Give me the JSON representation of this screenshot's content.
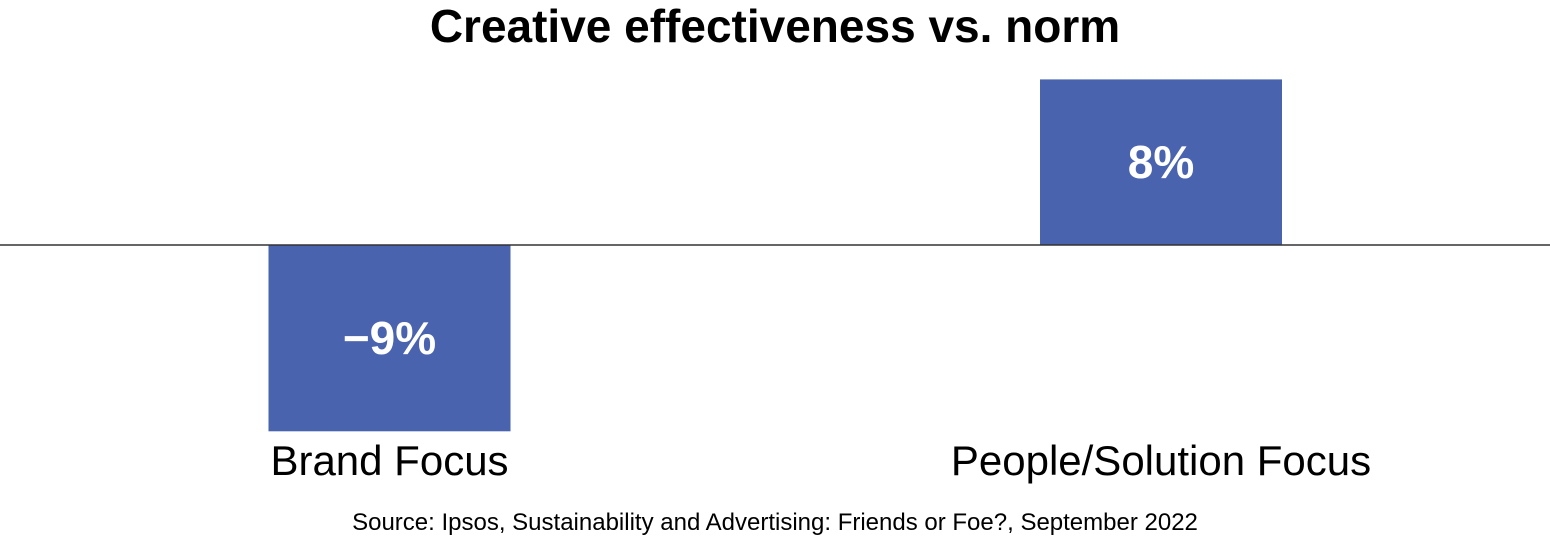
{
  "chart_data": {
    "type": "bar",
    "title": "Creative effectiveness vs. norm",
    "categories": [
      "Brand Focus",
      "People/Solution Focus"
    ],
    "values": [
      -9,
      8
    ],
    "value_labels": [
      "−9%",
      "8%"
    ],
    "ylim": [
      -9,
      8
    ],
    "grid": false,
    "legend": "none"
  },
  "source": "Source: Ipsos, Sustainability and Advertising: Friends or Foe?, September 2022",
  "colors": {
    "bar": "#4A63AF",
    "axis": "#333333",
    "text": "#000000",
    "label_text": "#ffffff"
  }
}
